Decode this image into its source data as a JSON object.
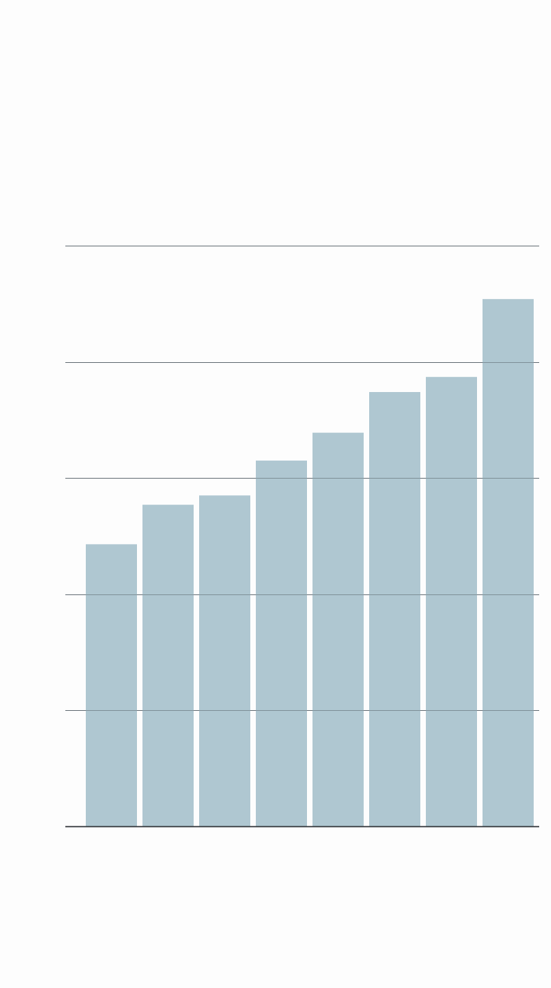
{
  "chart_data": {
    "type": "bar",
    "title": "",
    "xlabel": "",
    "ylabel": "",
    "categories": [
      "",
      "",
      "",
      "",
      "",
      "",
      "",
      ""
    ],
    "values": [
      2.43,
      2.77,
      2.85,
      3.15,
      3.39,
      3.74,
      3.87,
      4.54
    ],
    "ylim": [
      0,
      5
    ],
    "yticks": [
      0,
      1,
      2,
      3,
      4,
      5
    ],
    "grid": true,
    "legend": "none",
    "colors": {
      "bar": "#afc7d1",
      "gridline": "#8a8f93",
      "baseline": "#2b2f33",
      "background": "#fdfdfd"
    }
  }
}
